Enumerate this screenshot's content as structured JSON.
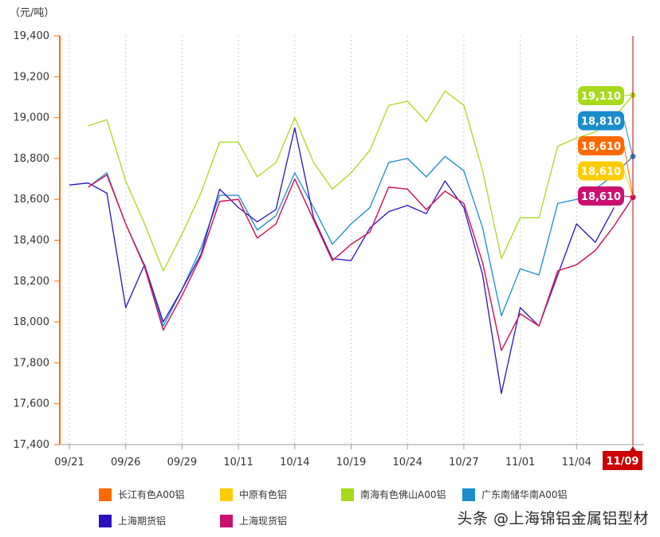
{
  "chart_data": {
    "type": "line",
    "unit_label": "（元/吨）",
    "x_tick_labels": [
      "09/21",
      "09/26",
      "09/29",
      "10/11",
      "10/14",
      "10/19",
      "10/24",
      "10/27",
      "11/01",
      "11/04",
      "11/09"
    ],
    "x_tick_index": [
      0,
      3,
      6,
      9,
      12,
      15,
      18,
      21,
      24,
      27,
      30
    ],
    "x_dates": [
      "09/21",
      "09/22",
      "09/23",
      "09/26",
      "09/27",
      "09/28",
      "09/29",
      "09/30",
      "10/10",
      "10/11",
      "10/12",
      "10/13",
      "10/14",
      "10/17",
      "10/18",
      "10/19",
      "10/20",
      "10/21",
      "10/24",
      "10/25",
      "10/26",
      "10/27",
      "10/28",
      "10/31",
      "11/01",
      "11/02",
      "11/03",
      "11/04",
      "11/07",
      "11/08",
      "11/09"
    ],
    "current_date": "11/09",
    "ylim": [
      17400,
      19400
    ],
    "y_ticks": [
      "17,400",
      "17,600",
      "17,800",
      "18,000",
      "18,200",
      "18,400",
      "18,600",
      "18,800",
      "19,000",
      "19,200",
      "19,400"
    ],
    "y_tick_values": [
      17400,
      17600,
      17800,
      18000,
      18200,
      18400,
      18600,
      18800,
      19000,
      19200,
      19400
    ],
    "grid": "vertical dotted",
    "legend_position": "bottom",
    "series": [
      {
        "name": "长江有色A00铝",
        "color": "#ff6a00",
        "callout": "18,610",
        "callout_rank": 2,
        "values": [
          null,
          18660,
          18720,
          18480,
          18270,
          17960,
          18130,
          18320,
          18590,
          18600,
          18410,
          18480,
          18700,
          18500,
          18300,
          18380,
          18440,
          18660,
          18650,
          18550,
          18640,
          18580,
          18290,
          17860,
          18040,
          17980,
          18250,
          18280,
          18350,
          18470,
          18610
        ]
      },
      {
        "name": "中原有色铝",
        "color": "#ffcc00",
        "callout": "18,610",
        "callout_rank": 3,
        "values": [
          null,
          18660,
          18720,
          18480,
          18270,
          17960,
          18130,
          18320,
          18590,
          18600,
          18410,
          18480,
          18700,
          18500,
          18300,
          18380,
          18440,
          18660,
          18650,
          18550,
          18640,
          18580,
          18290,
          17860,
          18040,
          17980,
          18250,
          18280,
          18350,
          18470,
          18610
        ]
      },
      {
        "name": "南海有色佛山A00铝",
        "color": "#a7d91c",
        "callout": "19,110",
        "callout_rank": 0,
        "values": [
          null,
          18960,
          18990,
          18690,
          18480,
          18250,
          18430,
          18630,
          18880,
          18880,
          18710,
          18780,
          19000,
          18780,
          18650,
          18730,
          18840,
          19060,
          19080,
          18980,
          19130,
          19060,
          18740,
          18310,
          18510,
          18510,
          18860,
          18900,
          18930,
          19000,
          19110
        ]
      },
      {
        "name": "广东南储华南A00铝",
        "color": "#1a8ccc",
        "callout": "18,810",
        "callout_rank": 1,
        "values": [
          null,
          18660,
          18730,
          18480,
          18280,
          17980,
          18160,
          18360,
          18620,
          18620,
          18450,
          18520,
          18730,
          18560,
          18380,
          18480,
          18560,
          18780,
          18800,
          18710,
          18810,
          18740,
          18460,
          18030,
          18260,
          18230,
          18580,
          18600,
          18650,
          18720,
          18810
        ]
      },
      {
        "name": "上海期货铝",
        "color": "#2b10c0",
        "callout": null,
        "callout_rank": null,
        "values": [
          18670,
          18680,
          18630,
          18070,
          18280,
          18000,
          18160,
          18330,
          18650,
          18560,
          18490,
          18550,
          18950,
          18510,
          18310,
          18300,
          18460,
          18540,
          18570,
          18530,
          18690,
          18560,
          18230,
          17650,
          18070,
          17980,
          18230,
          18480,
          18390,
          18560,
          null
        ]
      },
      {
        "name": "上海现货铝",
        "color": "#cc1070",
        "callout": "18,610",
        "callout_rank": 4,
        "values": [
          null,
          18660,
          18720,
          18480,
          18270,
          17960,
          18130,
          18320,
          18590,
          18600,
          18410,
          18480,
          18700,
          18500,
          18300,
          18380,
          18440,
          18660,
          18650,
          18550,
          18640,
          18580,
          18290,
          17860,
          18040,
          17980,
          18250,
          18280,
          18350,
          18470,
          18610
        ]
      }
    ]
  },
  "watermark": "头条 @上海锦铝金属铝型材"
}
